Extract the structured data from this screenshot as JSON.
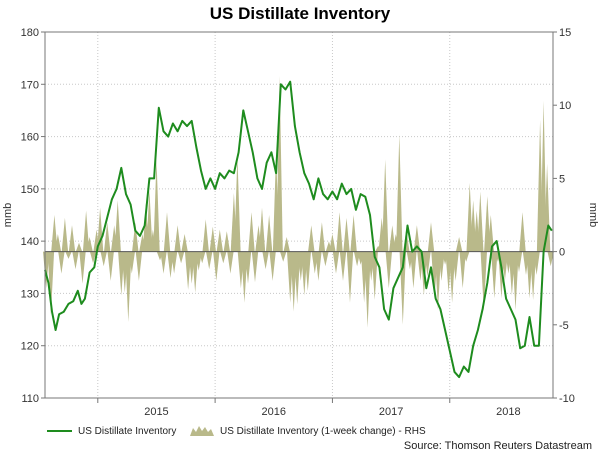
{
  "chart_data": {
    "type": "line+bar",
    "title": "US Distillate Inventory",
    "ylabel_left": "mmb",
    "ylabel_right": "mmb",
    "ylim_left": [
      110,
      180
    ],
    "ylim_right": [
      -10,
      15
    ],
    "yticks_left": [
      110,
      120,
      130,
      140,
      150,
      160,
      170,
      180
    ],
    "yticks_right": [
      -10,
      -5,
      0,
      5,
      10,
      15
    ],
    "xlim": [
      2014.55,
      2018.88
    ],
    "year_boundaries": [
      2015,
      2016,
      2017,
      2018
    ],
    "xtick_labels": [
      {
        "label": "2015",
        "x": 2015.5
      },
      {
        "label": "2016",
        "x": 2016.5
      },
      {
        "label": "2017",
        "x": 2017.5
      },
      {
        "label": "2018",
        "x": 2018.5
      }
    ],
    "line_series": {
      "name": "US Distillate Inventory",
      "color": "#1e8c1e",
      "points": [
        [
          2014.55,
          134.5
        ],
        [
          2014.58,
          132
        ],
        [
          2014.61,
          126.5
        ],
        [
          2014.64,
          123
        ],
        [
          2014.67,
          126
        ],
        [
          2014.71,
          126.5
        ],
        [
          2014.75,
          128
        ],
        [
          2014.79,
          128.5
        ],
        [
          2014.83,
          130.5
        ],
        [
          2014.86,
          128
        ],
        [
          2014.89,
          129
        ],
        [
          2014.93,
          134
        ],
        [
          2014.97,
          135
        ],
        [
          2015.0,
          139
        ],
        [
          2015.04,
          141
        ],
        [
          2015.08,
          144.5
        ],
        [
          2015.12,
          148
        ],
        [
          2015.16,
          150
        ],
        [
          2015.2,
          154
        ],
        [
          2015.24,
          149
        ],
        [
          2015.28,
          147
        ],
        [
          2015.32,
          142
        ],
        [
          2015.36,
          141
        ],
        [
          2015.4,
          143
        ],
        [
          2015.44,
          152
        ],
        [
          2015.48,
          152
        ],
        [
          2015.52,
          165.5
        ],
        [
          2015.56,
          161
        ],
        [
          2015.6,
          160
        ],
        [
          2015.64,
          162.5
        ],
        [
          2015.68,
          161
        ],
        [
          2015.72,
          163
        ],
        [
          2015.76,
          162
        ],
        [
          2015.8,
          163
        ],
        [
          2015.84,
          158
        ],
        [
          2015.88,
          153.5
        ],
        [
          2015.92,
          150
        ],
        [
          2015.96,
          152
        ],
        [
          2016.0,
          150
        ],
        [
          2016.04,
          153
        ],
        [
          2016.08,
          152
        ],
        [
          2016.12,
          153.5
        ],
        [
          2016.16,
          153
        ],
        [
          2016.2,
          157
        ],
        [
          2016.24,
          165
        ],
        [
          2016.28,
          161
        ],
        [
          2016.32,
          157
        ],
        [
          2016.36,
          152
        ],
        [
          2016.4,
          150
        ],
        [
          2016.44,
          155
        ],
        [
          2016.48,
          157
        ],
        [
          2016.52,
          153
        ],
        [
          2016.56,
          170
        ],
        [
          2016.6,
          169
        ],
        [
          2016.64,
          170.5
        ],
        [
          2016.68,
          162
        ],
        [
          2016.72,
          157
        ],
        [
          2016.76,
          153
        ],
        [
          2016.8,
          151
        ],
        [
          2016.84,
          148
        ],
        [
          2016.88,
          152
        ],
        [
          2016.92,
          149
        ],
        [
          2016.96,
          148
        ],
        [
          2017.0,
          149.5
        ],
        [
          2017.04,
          148
        ],
        [
          2017.08,
          151
        ],
        [
          2017.12,
          149
        ],
        [
          2017.16,
          150
        ],
        [
          2017.2,
          146
        ],
        [
          2017.24,
          149
        ],
        [
          2017.28,
          148.5
        ],
        [
          2017.32,
          145
        ],
        [
          2017.36,
          137
        ],
        [
          2017.4,
          135
        ],
        [
          2017.44,
          127
        ],
        [
          2017.48,
          125
        ],
        [
          2017.52,
          131
        ],
        [
          2017.56,
          133
        ],
        [
          2017.6,
          135
        ],
        [
          2017.64,
          143
        ],
        [
          2017.68,
          138
        ],
        [
          2017.72,
          139
        ],
        [
          2017.76,
          138
        ],
        [
          2017.8,
          131
        ],
        [
          2017.84,
          135
        ],
        [
          2017.88,
          129
        ],
        [
          2017.92,
          127
        ],
        [
          2017.96,
          123
        ],
        [
          2018.0,
          119
        ],
        [
          2018.04,
          115
        ],
        [
          2018.08,
          114
        ],
        [
          2018.12,
          116
        ],
        [
          2018.16,
          115
        ],
        [
          2018.2,
          120
        ],
        [
          2018.24,
          123
        ],
        [
          2018.28,
          127
        ],
        [
          2018.32,
          132
        ],
        [
          2018.36,
          139
        ],
        [
          2018.4,
          140
        ],
        [
          2018.44,
          135
        ],
        [
          2018.48,
          129
        ],
        [
          2018.52,
          127
        ],
        [
          2018.56,
          125
        ],
        [
          2018.6,
          119.5
        ],
        [
          2018.64,
          120
        ],
        [
          2018.68,
          125.5
        ],
        [
          2018.72,
          120
        ],
        [
          2018.76,
          120
        ],
        [
          2018.8,
          138
        ],
        [
          2018.84,
          143
        ],
        [
          2018.87,
          142
        ]
      ]
    },
    "bar_series": {
      "name": "US Distillate Inventory (1-week change) - RHS",
      "color": "#b9b98a",
      "points": [
        [
          2014.56,
          -2.5
        ],
        [
          2014.6,
          -4.3
        ],
        [
          2014.63,
          2.5
        ],
        [
          2014.66,
          1.2
        ],
        [
          2014.69,
          -1.5
        ],
        [
          2014.72,
          2.3
        ],
        [
          2014.75,
          -0.5
        ],
        [
          2014.78,
          1.8
        ],
        [
          2014.81,
          -1.2
        ],
        [
          2014.84,
          0.6
        ],
        [
          2014.87,
          -2.2
        ],
        [
          2014.9,
          2.8
        ],
        [
          2014.93,
          1.0
        ],
        [
          2014.96,
          -0.8
        ],
        [
          2014.99,
          1.5
        ],
        [
          2015.02,
          3.0
        ],
        [
          2015.05,
          -1.0
        ],
        [
          2015.08,
          2.0
        ],
        [
          2015.11,
          -2.0
        ],
        [
          2015.14,
          1.8
        ],
        [
          2015.17,
          3.5
        ],
        [
          2015.2,
          -3.0
        ],
        [
          2015.23,
          -2.8
        ],
        [
          2015.26,
          -4.8
        ],
        [
          2015.29,
          -1.5
        ],
        [
          2015.32,
          2.0
        ],
        [
          2015.35,
          -2.0
        ],
        [
          2015.38,
          1.2
        ],
        [
          2015.41,
          3.3
        ],
        [
          2015.44,
          4.2
        ],
        [
          2015.47,
          1.5
        ],
        [
          2015.5,
          6.3
        ],
        [
          2015.53,
          -0.6
        ],
        [
          2015.56,
          -1.5
        ],
        [
          2015.59,
          2.7
        ],
        [
          2015.62,
          -1.8
        ],
        [
          2015.65,
          -1.5
        ],
        [
          2015.68,
          1.8
        ],
        [
          2015.71,
          -0.8
        ],
        [
          2015.74,
          1.2
        ],
        [
          2015.77,
          -2.6
        ],
        [
          2015.8,
          -2.2
        ],
        [
          2015.83,
          -2.8
        ],
        [
          2015.86,
          -1.3
        ],
        [
          2015.89,
          -0.8
        ],
        [
          2015.92,
          2.2
        ],
        [
          2015.95,
          -1.2
        ],
        [
          2015.98,
          1.7
        ],
        [
          2016.01,
          -2.0
        ],
        [
          2016.04,
          1.5
        ],
        [
          2016.07,
          -0.8
        ],
        [
          2016.1,
          1.4
        ],
        [
          2016.13,
          -1.5
        ],
        [
          2016.16,
          4.0
        ],
        [
          2016.19,
          6.5
        ],
        [
          2016.22,
          -2.5
        ],
        [
          2016.25,
          -3.5
        ],
        [
          2016.28,
          -2.2
        ],
        [
          2016.31,
          2.7
        ],
        [
          2016.34,
          -2.1
        ],
        [
          2016.37,
          1.8
        ],
        [
          2016.4,
          3.0
        ],
        [
          2016.43,
          -1.2
        ],
        [
          2016.46,
          2.5
        ],
        [
          2016.49,
          -2.0
        ],
        [
          2016.52,
          6.8
        ],
        [
          2016.55,
          12.0
        ],
        [
          2016.58,
          -0.7
        ],
        [
          2016.61,
          1.0
        ],
        [
          2016.64,
          -3.5
        ],
        [
          2016.67,
          -4.1
        ],
        [
          2016.7,
          -3.6
        ],
        [
          2016.73,
          -2.0
        ],
        [
          2016.76,
          -3.0
        ],
        [
          2016.79,
          -2.7
        ],
        [
          2016.82,
          1.8
        ],
        [
          2016.85,
          -1.5
        ],
        [
          2016.88,
          -2.0
        ],
        [
          2016.91,
          2.0
        ],
        [
          2016.94,
          -1.0
        ],
        [
          2016.97,
          0.7
        ],
        [
          2017.0,
          1.2
        ],
        [
          2017.03,
          -1.5
        ],
        [
          2017.06,
          2.7
        ],
        [
          2017.09,
          -2.0
        ],
        [
          2017.12,
          2.3
        ],
        [
          2017.15,
          -3.5
        ],
        [
          2017.18,
          2.5
        ],
        [
          2017.21,
          -1.0
        ],
        [
          2017.24,
          -0.9
        ],
        [
          2017.27,
          -3.5
        ],
        [
          2017.3,
          -5.2
        ],
        [
          2017.33,
          -2.0
        ],
        [
          2017.36,
          -3.3
        ],
        [
          2017.39,
          0.4
        ],
        [
          2017.42,
          2.3
        ],
        [
          2017.45,
          6.3
        ],
        [
          2017.48,
          -2.5
        ],
        [
          2017.51,
          1.8
        ],
        [
          2017.54,
          1.2
        ],
        [
          2017.57,
          8.0
        ],
        [
          2017.6,
          -5.0
        ],
        [
          2017.63,
          1.5
        ],
        [
          2017.66,
          -1.2
        ],
        [
          2017.69,
          -2.5
        ],
        [
          2017.72,
          1.8
        ],
        [
          2017.75,
          -2.0
        ],
        [
          2017.78,
          -3.0
        ],
        [
          2017.81,
          -1.7
        ],
        [
          2017.84,
          2.0
        ],
        [
          2017.87,
          -3.2
        ],
        [
          2017.9,
          -4.0
        ],
        [
          2017.93,
          -2.0
        ],
        [
          2017.96,
          -0.9
        ],
        [
          2017.99,
          -2.8
        ],
        [
          2018.02,
          -3.5
        ],
        [
          2018.05,
          -2.0
        ],
        [
          2018.08,
          1.0
        ],
        [
          2018.11,
          -2.5
        ],
        [
          2018.14,
          -0.7
        ],
        [
          2018.17,
          4.7
        ],
        [
          2018.2,
          3.5
        ],
        [
          2018.23,
          2.8
        ],
        [
          2018.26,
          4.1
        ],
        [
          2018.29,
          -4.0
        ],
        [
          2018.32,
          3.8
        ],
        [
          2018.35,
          2.5
        ],
        [
          2018.38,
          -3.2
        ],
        [
          2018.41,
          -0.7
        ],
        [
          2018.44,
          -3.2
        ],
        [
          2018.47,
          -2.0
        ],
        [
          2018.5,
          -1.5
        ],
        [
          2018.53,
          -3.0
        ],
        [
          2018.56,
          -4.0
        ],
        [
          2018.59,
          -1.4
        ],
        [
          2018.62,
          2.7
        ],
        [
          2018.65,
          -1.6
        ],
        [
          2018.68,
          -3.2
        ],
        [
          2018.71,
          -3.3
        ],
        [
          2018.74,
          -1.6
        ],
        [
          2018.77,
          9.0
        ],
        [
          2018.8,
          10.3
        ],
        [
          2018.83,
          6.0
        ],
        [
          2018.86,
          -1.0
        ]
      ]
    },
    "legend": [
      {
        "label": "US Distillate Inventory",
        "kind": "line"
      },
      {
        "label": "US Distillate Inventory (1-week change) - RHS",
        "kind": "area"
      }
    ],
    "source": "Source: Thomson Reuters Datastream"
  }
}
